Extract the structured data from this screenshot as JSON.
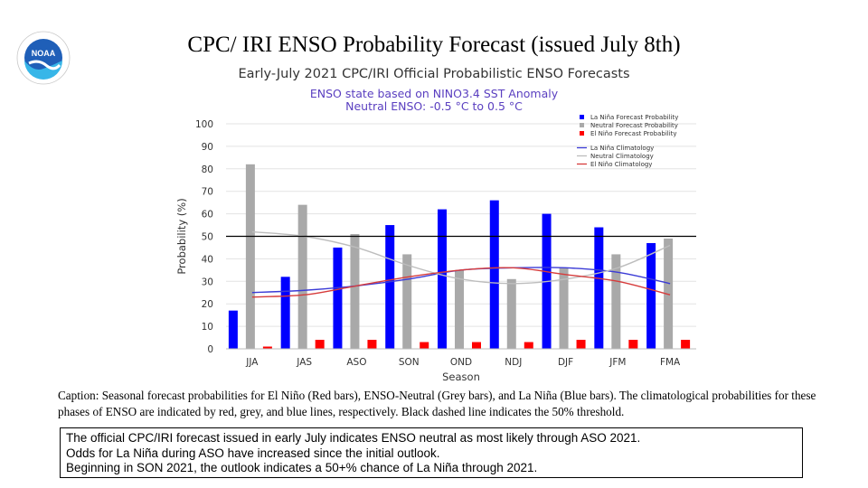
{
  "slide_title": "CPC/ IRI ENSO Probability Forecast (issued July  8th)",
  "logo": {
    "icon": "noaa-logo",
    "text": "NOAA"
  },
  "chart_data": {
    "type": "bar",
    "title": "Early-July 2021 CPC/IRI Official Probabilistic ENSO Forecasts",
    "subtitle": "ENSO state based on NINO3.4 SST Anomaly",
    "subtitle2": "Neutral ENSO: -0.5 °C to 0.5 °C",
    "xlabel": "Season",
    "ylabel": "Probability (%)",
    "ylim": [
      0,
      100
    ],
    "yticks": [
      0,
      10,
      20,
      30,
      40,
      50,
      60,
      70,
      80,
      90,
      100
    ],
    "threshold": 50,
    "categories": [
      "JJA",
      "JAS",
      "ASO",
      "SON",
      "OND",
      "NDJ",
      "DJF",
      "JFM",
      "FMA"
    ],
    "series": [
      {
        "name": "La Niña Forecast Probability",
        "color": "#0000ff",
        "values": [
          17,
          32,
          45,
          55,
          62,
          66,
          60,
          54,
          47
        ]
      },
      {
        "name": "Neutral Forecast Probability",
        "color": "#a9a9a9",
        "values": [
          82,
          64,
          51,
          42,
          35,
          31,
          36,
          42,
          49
        ]
      },
      {
        "name": "El Niño Forecast Probability",
        "color": "#ff0000",
        "values": [
          1,
          4,
          4,
          3,
          3,
          3,
          4,
          4,
          4
        ]
      }
    ],
    "climatology": [
      {
        "name": "La Niña Climatology",
        "color": "#3b3bd6",
        "values": [
          25,
          26,
          28,
          31,
          35,
          36,
          36,
          34,
          29
        ]
      },
      {
        "name": "Neutral Climatology",
        "color": "#bdbdbd",
        "values": [
          52,
          50,
          45,
          37,
          31,
          29,
          31,
          36,
          46
        ]
      },
      {
        "name": "El Niño Climatology",
        "color": "#d63b3b",
        "values": [
          23,
          24,
          28,
          32,
          35,
          36,
          33,
          30,
          24
        ]
      }
    ],
    "legend_position": "top-right"
  },
  "caption": "Caption: Seasonal forecast probabilities  for El Niño (Red bars), ENSO-Neutral (Grey bars), and La Niña (Blue bars). The climatological probabilities  for these phases of ENSO are indicated by red, grey, and blue lines,  respectively. Black dashed line indicates the 50% threshold.",
  "summary": [
    "The official CPC/IRI forecast issued in early July indicates ENSO neutral as most likely through ASO 2021.",
    "Odds for La Niña during ASO have increased since the initial outlook.",
    "Beginning in SON 2021, the outlook indicates a 50+% chance of La Niña through 2021."
  ]
}
